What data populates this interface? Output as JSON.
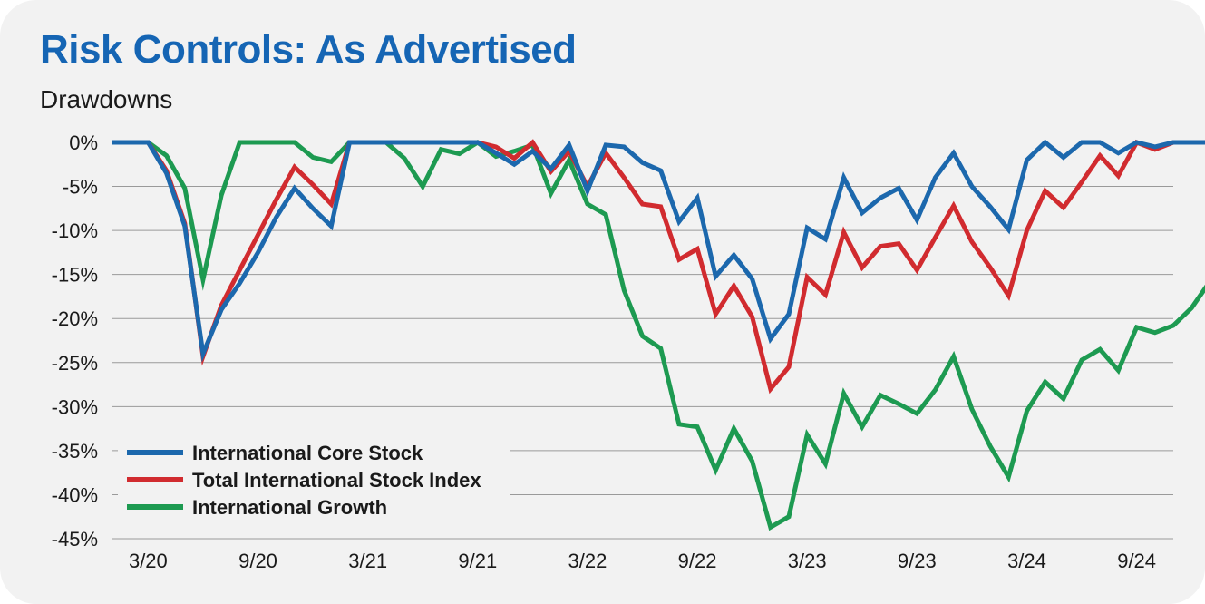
{
  "chart_data": {
    "type": "line",
    "title": "Risk Controls: As Advertised",
    "subtitle": "Drawdowns",
    "xlabel": "",
    "ylabel": "",
    "ylim": [
      -45,
      0
    ],
    "y_ticks": [
      0,
      -5,
      -10,
      -15,
      -20,
      -25,
      -30,
      -35,
      -40,
      -45
    ],
    "y_tick_labels": [
      "0%",
      "-5%",
      "-10%",
      "-15%",
      "-20%",
      "-25%",
      "-30%",
      "-35%",
      "-40%",
      "-45%"
    ],
    "x_ticks": [
      2,
      8,
      14,
      20,
      26,
      32,
      38,
      44,
      50,
      56
    ],
    "x_tick_labels": [
      "3/20",
      "9/20",
      "3/21",
      "9/21",
      "3/22",
      "9/22",
      "3/23",
      "9/23",
      "3/24",
      "9/24"
    ],
    "x_range": [
      0,
      58
    ],
    "grid": "horizontal",
    "legend_position": "bottom-left",
    "series": [
      {
        "name": "International Core Stock",
        "color": "#1c68ad",
        "values": [
          0,
          0,
          0,
          -3.5,
          -9.5,
          -24,
          -19,
          -16,
          -12.5,
          -8.5,
          -5.2,
          -7.5,
          -9.5,
          0,
          0,
          0,
          0,
          0,
          0,
          0,
          0,
          -1.2,
          -2.5,
          -1,
          -3,
          -0.3,
          -5.5,
          -0.3,
          -0.5,
          -2.3,
          -3.2,
          -9,
          -6.3,
          -15.2,
          -12.8,
          -15.5,
          -22.3,
          -19.5,
          -9.7,
          -11,
          -4,
          -8,
          -6.3,
          -5.2,
          -8.8,
          -4,
          -1.2,
          -5,
          -7.3,
          -9.9,
          -2,
          0,
          -1.7,
          0,
          0,
          -1.2,
          0,
          -0.5,
          0,
          0,
          0
        ]
      },
      {
        "name": "Total International Stock Index",
        "color": "#d12b2f",
        "values": [
          0,
          0,
          0,
          -3.2,
          -9.2,
          -24.3,
          -18.5,
          -14.5,
          -10.5,
          -6.5,
          -2.8,
          -4.8,
          -7,
          0,
          0,
          0,
          0,
          0,
          0,
          0,
          0,
          -0.5,
          -1.8,
          0,
          -3.3,
          -1,
          -5,
          -1.2,
          -4,
          -7,
          -7.3,
          -13.3,
          -12.1,
          -19.5,
          -16.3,
          -19.8,
          -28,
          -25.5,
          -15.3,
          -17.3,
          -10.2,
          -14.2,
          -11.8,
          -11.5,
          -14.5,
          -10.8,
          -7.2,
          -11.3,
          -14.2,
          -17.4,
          -10,
          -5.5,
          -7.4,
          -4.5,
          -1.5,
          -3.8,
          0,
          -0.8,
          0,
          0,
          0
        ]
      },
      {
        "name": "International Growth",
        "color": "#1d9a51",
        "values": [
          0,
          0,
          0,
          -1.5,
          -5.2,
          -15.6,
          -6,
          0,
          0,
          0,
          0,
          -1.7,
          -2.2,
          0,
          0,
          0,
          -1.8,
          -5,
          -0.8,
          -1.3,
          0,
          -1.6,
          -1,
          -0.3,
          -5.8,
          -2,
          -7,
          -8.2,
          -16.8,
          -22,
          -23.4,
          -32,
          -32.3,
          -37.2,
          -32.5,
          -36.2,
          -43.7,
          -42.5,
          -33.2,
          -36.5,
          -28.5,
          -32.3,
          -28.7,
          -29.7,
          -30.8,
          -28.1,
          -24.3,
          -30.3,
          -34.5,
          -38,
          -30.5,
          -27.2,
          -29.1,
          -24.7,
          -23.5,
          -25.9,
          -21,
          -21.6,
          -20.8,
          -18.8,
          -15.8
        ]
      }
    ]
  }
}
